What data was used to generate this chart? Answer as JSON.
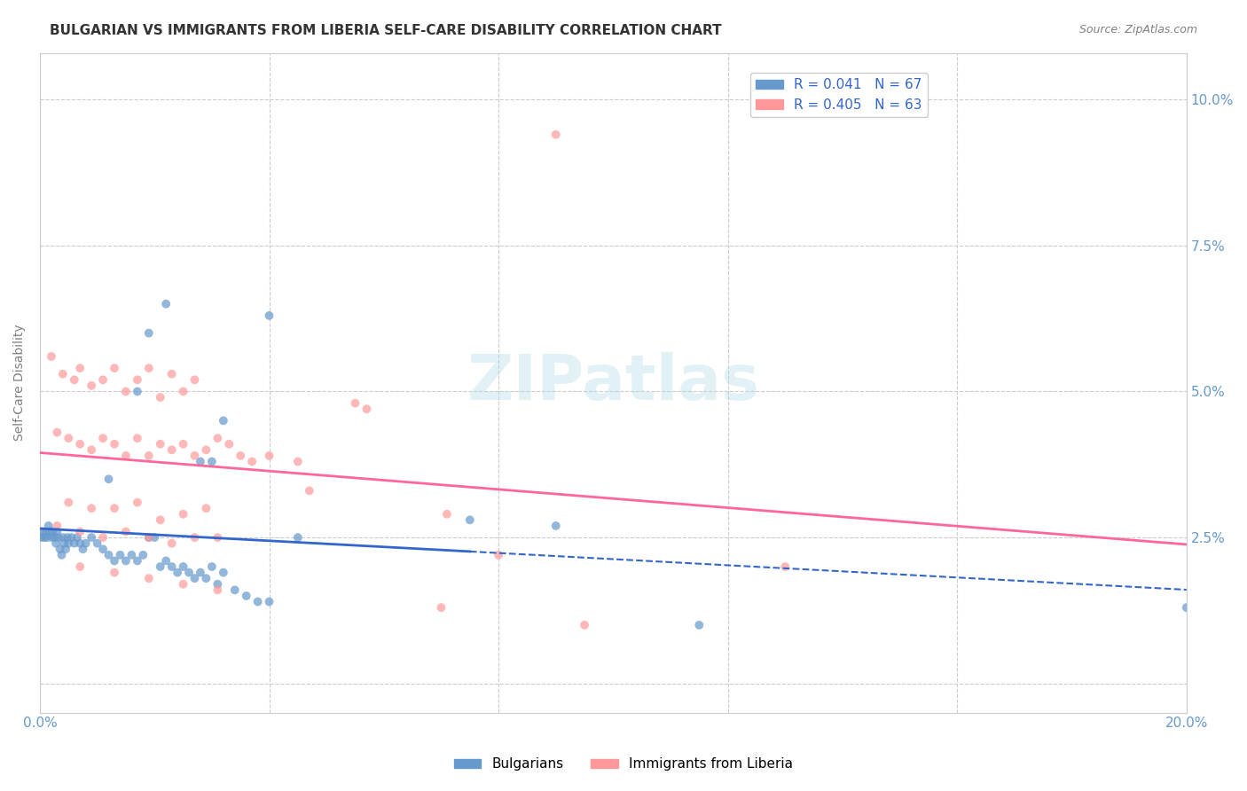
{
  "title": "BULGARIAN VS IMMIGRANTS FROM LIBERIA SELF-CARE DISABILITY CORRELATION CHART",
  "source": "Source: ZipAtlas.com",
  "ylabel": "Self-Care Disability",
  "xlim": [
    0.0,
    0.2
  ],
  "ylim": [
    -0.005,
    0.108
  ],
  "legend_R1": "R = 0.041",
  "legend_N1": "N = 67",
  "legend_R2": "R = 0.405",
  "legend_N2": "N = 63",
  "blue_color": "#6699CC",
  "pink_color": "#FF9999",
  "blue_line_color": "#3366CC",
  "pink_line_color": "#FF6699",
  "axis_label_color": "#6699CC",
  "grid_color": "#CCCCCC",
  "title_color": "#333333",
  "bg_x": [
    0.0003,
    0.0005,
    0.0008,
    0.001,
    0.0012,
    0.0015,
    0.0018,
    0.002,
    0.0022,
    0.0025,
    0.0028,
    0.003,
    0.0032,
    0.0035,
    0.0038,
    0.004,
    0.0042,
    0.0045,
    0.0048,
    0.005,
    0.0055,
    0.006,
    0.0065,
    0.007,
    0.0075,
    0.008,
    0.009,
    0.01,
    0.011,
    0.012,
    0.013,
    0.014,
    0.015,
    0.016,
    0.017,
    0.018,
    0.019,
    0.02,
    0.021,
    0.022,
    0.023,
    0.024,
    0.025,
    0.026,
    0.027,
    0.028,
    0.029,
    0.03,
    0.031,
    0.032,
    0.034,
    0.036,
    0.038,
    0.04,
    0.075,
    0.09,
    0.045,
    0.2,
    0.115,
    0.019,
    0.022,
    0.04,
    0.017,
    0.032,
    0.028,
    0.03,
    0.012
  ],
  "bg_y": [
    0.025,
    0.026,
    0.025,
    0.026,
    0.025,
    0.027,
    0.026,
    0.025,
    0.026,
    0.025,
    0.024,
    0.026,
    0.025,
    0.023,
    0.022,
    0.025,
    0.024,
    0.023,
    0.025,
    0.024,
    0.025,
    0.024,
    0.025,
    0.024,
    0.023,
    0.024,
    0.025,
    0.024,
    0.023,
    0.022,
    0.021,
    0.022,
    0.021,
    0.022,
    0.021,
    0.022,
    0.025,
    0.025,
    0.02,
    0.021,
    0.02,
    0.019,
    0.02,
    0.019,
    0.018,
    0.019,
    0.018,
    0.02,
    0.017,
    0.019,
    0.016,
    0.015,
    0.014,
    0.014,
    0.028,
    0.027,
    0.025,
    0.013,
    0.01,
    0.06,
    0.065,
    0.063,
    0.05,
    0.045,
    0.038,
    0.038,
    0.035
  ],
  "lib_x": [
    0.002,
    0.004,
    0.006,
    0.007,
    0.009,
    0.011,
    0.013,
    0.015,
    0.017,
    0.019,
    0.021,
    0.023,
    0.025,
    0.027,
    0.003,
    0.005,
    0.007,
    0.009,
    0.011,
    0.013,
    0.015,
    0.017,
    0.019,
    0.021,
    0.023,
    0.025,
    0.027,
    0.029,
    0.031,
    0.033,
    0.035,
    0.037,
    0.04,
    0.045,
    0.057,
    0.005,
    0.009,
    0.013,
    0.017,
    0.021,
    0.025,
    0.029,
    0.047,
    0.071,
    0.003,
    0.007,
    0.011,
    0.015,
    0.019,
    0.023,
    0.027,
    0.031,
    0.055,
    0.08,
    0.13,
    0.007,
    0.013,
    0.019,
    0.025,
    0.031,
    0.07,
    0.09,
    0.095
  ],
  "lib_y": [
    0.056,
    0.053,
    0.052,
    0.054,
    0.051,
    0.052,
    0.054,
    0.05,
    0.052,
    0.054,
    0.049,
    0.053,
    0.05,
    0.052,
    0.043,
    0.042,
    0.041,
    0.04,
    0.042,
    0.041,
    0.039,
    0.042,
    0.039,
    0.041,
    0.04,
    0.041,
    0.039,
    0.04,
    0.042,
    0.041,
    0.039,
    0.038,
    0.039,
    0.038,
    0.047,
    0.031,
    0.03,
    0.03,
    0.031,
    0.028,
    0.029,
    0.03,
    0.033,
    0.029,
    0.027,
    0.026,
    0.025,
    0.026,
    0.025,
    0.024,
    0.025,
    0.025,
    0.048,
    0.022,
    0.02,
    0.02,
    0.019,
    0.018,
    0.017,
    0.016,
    0.013,
    0.094,
    0.01
  ]
}
